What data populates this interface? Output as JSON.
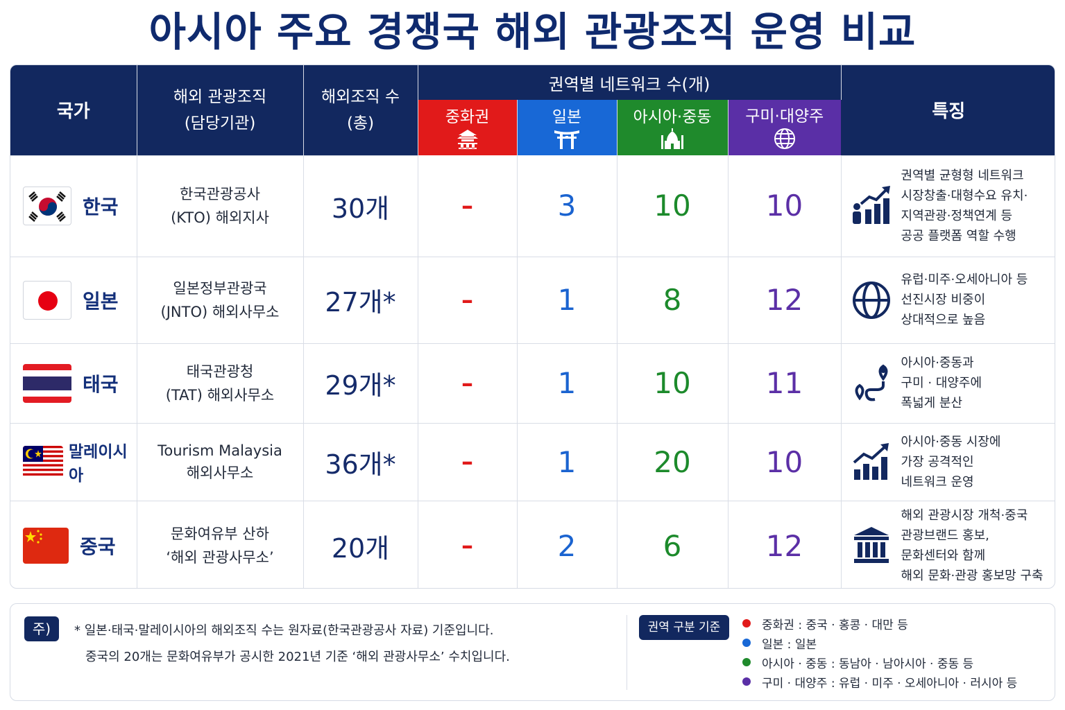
{
  "title": "아시아 주요 경쟁국 해외 관광조직 운영 비교",
  "headers": {
    "country": "국가",
    "org_line1": "해외 관광조직",
    "org_line2": "(담당기관)",
    "count_line1": "해외조직 수",
    "count_line2": "(총)",
    "network": "권역별 네트워크 수(개)",
    "features": "특징",
    "regions": [
      {
        "label": "중화권",
        "icon": "pagoda-icon",
        "color": "#e11a1a"
      },
      {
        "label": "일본",
        "icon": "torii-gate-icon",
        "color": "#1868d6"
      },
      {
        "label": "아시아·중동",
        "icon": "mosque-icon",
        "color": "#1f8a2c"
      },
      {
        "label": "구미·대양주",
        "icon": "globe-icon",
        "color": "#5a2fa6"
      }
    ]
  },
  "rows": [
    {
      "country": "한국",
      "flag": "korea-flag",
      "org_line1": "한국관광공사",
      "org_line2": "(KTO) 해외지사",
      "count": "30개",
      "sinosphere": "–",
      "japan": "3",
      "asia_me": "10",
      "west_oceania": "10",
      "feature_icon": "growth-chart-icon",
      "features": [
        "권역별 균형형 네트워크",
        "시장창출·대형수요 유치·",
        "지역관광·정책연계 등",
        "공공 플랫폼 역할 수행"
      ]
    },
    {
      "country": "일본",
      "flag": "japan-flag",
      "org_line1": "일본정부관광국",
      "org_line2": "(JNTO) 해외사무소",
      "count": "27개*",
      "sinosphere": "–",
      "japan": "1",
      "asia_me": "8",
      "west_oceania": "12",
      "feature_icon": "globe-icon",
      "features": [
        "유럽·미주·오세아니아 등",
        "선진시장 비중이",
        "상대적으로 높음"
      ]
    },
    {
      "country": "태국",
      "flag": "thailand-flag",
      "org_line1": "태국관광청",
      "org_line2": "(TAT) 해외사무소",
      "count": "29개*",
      "sinosphere": "–",
      "japan": "1",
      "asia_me": "10",
      "west_oceania": "11",
      "feature_icon": "route-pin-icon",
      "features": [
        "아시아·중동과",
        "구미 · 대양주에",
        "폭넓게 분산"
      ]
    },
    {
      "country": "말레이시아",
      "flag": "malaysia-flag",
      "org_line1": "Tourism Malaysia",
      "org_line2": "해외사무소",
      "count": "36개*",
      "sinosphere": "–",
      "japan": "1",
      "asia_me": "20",
      "west_oceania": "10",
      "feature_icon": "growth-chart-icon",
      "features": [
        "아시아·중동 시장에",
        "가장 공격적인",
        "네트워크 운영"
      ]
    },
    {
      "country": "중국",
      "flag": "china-flag",
      "org_line1": "문화여유부 산하",
      "org_line2": "‘해외 관광사무소’",
      "count": "20개",
      "sinosphere": "–",
      "japan": "2",
      "asia_me": "6",
      "west_oceania": "12",
      "feature_icon": "institution-icon",
      "features": [
        "해외 관광시장 개척·중국",
        "관광브랜드 홍보,",
        "문화센터와 함께",
        "해외 문화·관광 홍보망 구축"
      ]
    }
  ],
  "note": {
    "badge": "주)",
    "line1": "*  일본·태국·말레이시아의 해외조직 수는 원자료(한국관광공사 자료) 기준입니다.",
    "line2": "중국의 20개는 문화여유부가 공시한 2021년 기준 ‘해외 관광사무소’ 수치입니다."
  },
  "legend": {
    "badge": "권역 구분 기준",
    "items": [
      {
        "text": "중화권  :  중국 · 홍콩 · 대만 등",
        "color": "#e11a1a"
      },
      {
        "text": "일본  :  일본",
        "color": "#1868d6"
      },
      {
        "text": "아시아 · 중동  :  동남아 · 남아시아 · 중동 등",
        "color": "#1f8a2c"
      },
      {
        "text": "구미 · 대양주  :  유럽 · 미주 · 오세아니아 · 러시아 등",
        "color": "#5a2fa6"
      }
    ]
  }
}
